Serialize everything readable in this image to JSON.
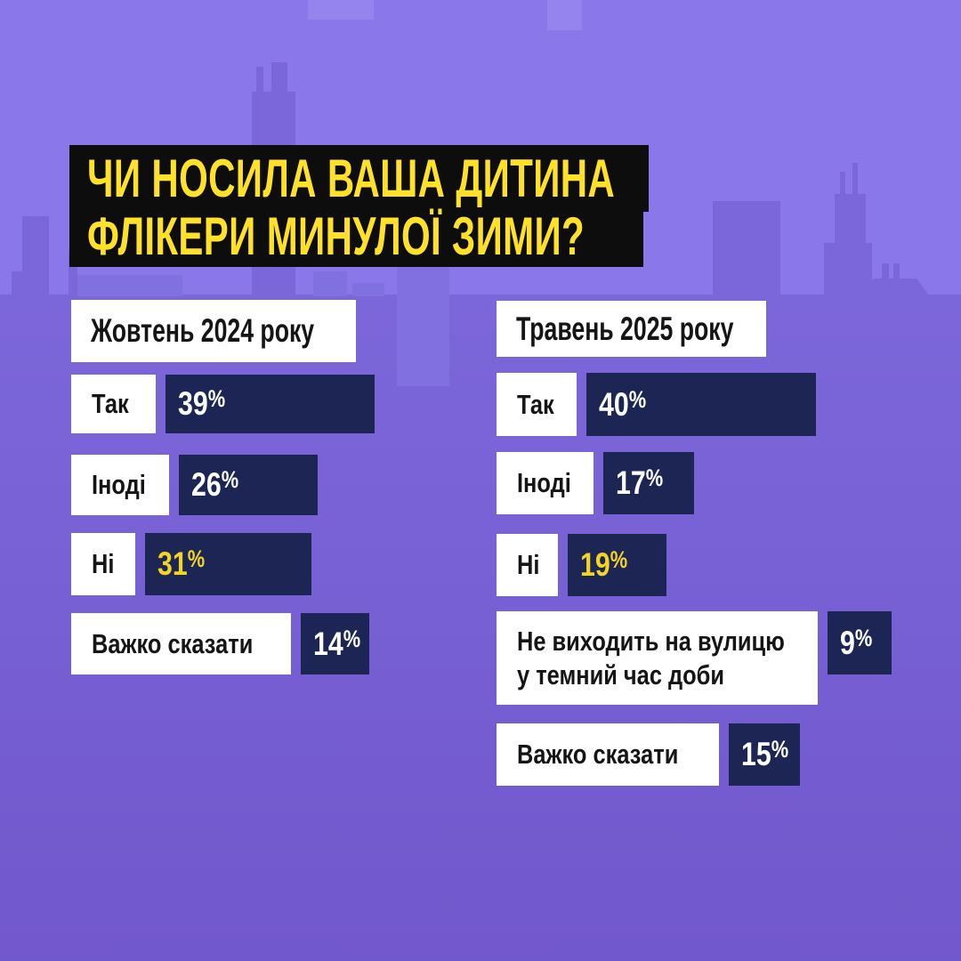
{
  "title": {
    "line1": "ЧИ НОСИЛА ВАША ДИТИНА",
    "line2": "ФЛІКЕРИ МИНУЛОЇ ЗИМИ?"
  },
  "colors": {
    "sky": "#8a77e9",
    "ground-top": "#7c67da",
    "ground-bottom": "#7158cc",
    "building-mid": "#8170df",
    "sky-patch": "#9583ee",
    "black": "#0d0d0e",
    "white": "#ffffff",
    "navy": "#1d2554",
    "title-yellow": "#ffe129",
    "bar-yellow": "#f2d522",
    "text-dark": "#151515"
  },
  "chart_data": {
    "type": "bar",
    "title": "ЧИ НОСИЛА ВАША ДИТИНА ФЛІКЕРИ МИНУЛОЇ ЗИМИ?",
    "unit": "%",
    "legend_position": "none",
    "groups": [
      {
        "label": "Жовтень 2024 року",
        "categories": [
          "Так",
          "Іноді",
          "Ні",
          "Важко сказати"
        ],
        "values": [
          39,
          26,
          31,
          14
        ]
      },
      {
        "label": "Травень 2025 року",
        "categories": [
          "Так",
          "Іноді",
          "Ні",
          "Не виходить на вулицю у темний час доби",
          "Важко сказати"
        ],
        "values": [
          40,
          17,
          19,
          9,
          15
        ]
      }
    ]
  },
  "columns": [
    {
      "header": "Жовтень 2024 року",
      "rows": [
        {
          "label": "Так",
          "value_text": "39%",
          "value": 39,
          "value_color": "white"
        },
        {
          "label": "Іноді",
          "value_text": "26%",
          "value": 26,
          "value_color": "white"
        },
        {
          "label": "Ні",
          "value_text": "31%",
          "value": 31,
          "value_color": "yellow"
        },
        {
          "label": "Важко сказати",
          "value_text": "14%",
          "value": 14,
          "value_color": "white"
        }
      ]
    },
    {
      "header": "Травень 2025 року",
      "rows": [
        {
          "label": "Так",
          "value_text": "40%",
          "value": 40,
          "value_color": "white"
        },
        {
          "label": "Іноді",
          "value_text": "17%",
          "value": 17,
          "value_color": "white"
        },
        {
          "label": "Ні",
          "value_text": "19%",
          "value": 19,
          "value_color": "yellow"
        },
        {
          "label": "Не виходить на вулицю\nу темний час доби",
          "value_text": "9%",
          "value": 9,
          "value_color": "white"
        },
        {
          "label": "Важко сказати",
          "value_text": "15%",
          "value": 15,
          "value_color": "white"
        }
      ]
    }
  ]
}
